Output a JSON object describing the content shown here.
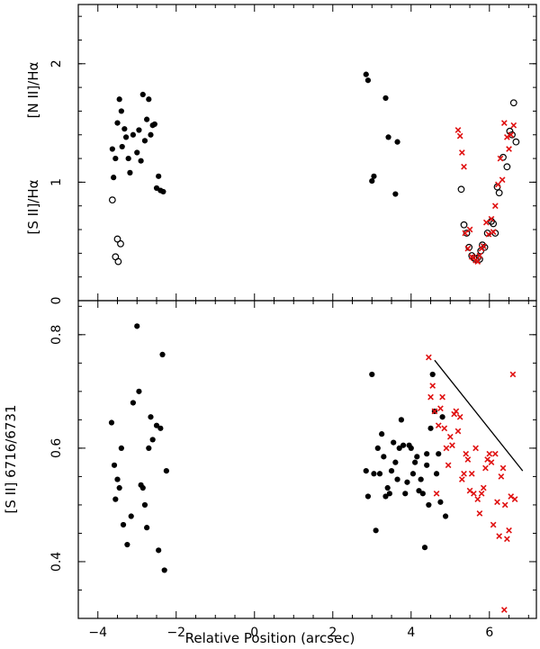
{
  "chart_data": [
    {
      "type": "scatter",
      "panel": "top",
      "ylabel_upper": "[N II]/Hα",
      "ylabel_lower": "[S II]/Hα",
      "xlim": [
        -4.5,
        7.2
      ],
      "ylim": [
        0,
        2.5
      ],
      "xticks": [
        -4,
        -2,
        0,
        2,
        4,
        6
      ],
      "yticks": [
        0,
        1,
        2
      ],
      "yticklabels": [
        "0",
        "1",
        "2"
      ],
      "series": [
        {
          "name": "[N II]/Hα",
          "marker": "filled-circle",
          "color": "#000000",
          "points": [
            [
              -3.63,
              1.28
            ],
            [
              -3.55,
              1.2
            ],
            [
              -3.5,
              1.5
            ],
            [
              -3.45,
              1.7
            ],
            [
              -3.4,
              1.6
            ],
            [
              -3.38,
              1.3
            ],
            [
              -3.32,
              1.45
            ],
            [
              -3.28,
              1.38
            ],
            [
              -3.22,
              1.2
            ],
            [
              -3.18,
              1.08
            ],
            [
              -3.1,
              1.4
            ],
            [
              -3.0,
              1.25
            ],
            [
              -2.95,
              1.44
            ],
            [
              -2.9,
              1.18
            ],
            [
              -2.85,
              1.74
            ],
            [
              -2.8,
              1.35
            ],
            [
              -2.75,
              1.53
            ],
            [
              -2.7,
              1.7
            ],
            [
              -2.65,
              1.4
            ],
            [
              -2.6,
              1.48
            ],
            [
              -2.55,
              1.49
            ],
            [
              -2.5,
              0.95
            ],
            [
              -2.45,
              1.05
            ],
            [
              -2.4,
              0.93
            ],
            [
              -2.33,
              0.92
            ],
            [
              -3.6,
              1.04
            ],
            [
              2.85,
              1.91
            ],
            [
              2.9,
              1.86
            ],
            [
              3.0,
              1.01
            ],
            [
              3.05,
              1.05
            ],
            [
              3.35,
              1.71
            ],
            [
              3.42,
              1.38
            ],
            [
              3.6,
              0.9
            ],
            [
              3.65,
              1.34
            ]
          ]
        },
        {
          "name": "[S II]/Hα",
          "marker": "open-circle",
          "color": "#000000",
          "points": [
            [
              -3.63,
              0.85
            ],
            [
              -3.55,
              0.37
            ],
            [
              -3.5,
              0.52
            ],
            [
              -3.48,
              0.33
            ],
            [
              -3.42,
              0.48
            ],
            [
              5.28,
              0.94
            ],
            [
              5.35,
              0.64
            ],
            [
              5.42,
              0.57
            ],
            [
              5.48,
              0.45
            ],
            [
              5.55,
              0.38
            ],
            [
              5.6,
              0.36
            ],
            [
              5.65,
              0.35
            ],
            [
              5.7,
              0.36
            ],
            [
              5.75,
              0.35
            ],
            [
              5.78,
              0.42
            ],
            [
              5.82,
              0.47
            ],
            [
              5.88,
              0.45
            ],
            [
              5.95,
              0.57
            ],
            [
              6.05,
              0.67
            ],
            [
              6.1,
              0.65
            ],
            [
              6.15,
              0.57
            ],
            [
              6.2,
              0.96
            ],
            [
              6.25,
              0.91
            ],
            [
              6.35,
              1.21
            ],
            [
              6.45,
              1.13
            ],
            [
              6.52,
              1.43
            ],
            [
              6.58,
              1.4
            ],
            [
              6.62,
              1.67
            ],
            [
              6.68,
              1.34
            ]
          ]
        },
        {
          "name": "[S II]/Hα (red)",
          "marker": "x",
          "color": "#e01010",
          "points": [
            [
              5.2,
              1.44
            ],
            [
              5.25,
              1.39
            ],
            [
              5.3,
              1.25
            ],
            [
              5.35,
              1.13
            ],
            [
              5.38,
              0.57
            ],
            [
              5.45,
              0.44
            ],
            [
              5.5,
              0.6
            ],
            [
              5.55,
              0.37
            ],
            [
              5.6,
              0.36
            ],
            [
              5.65,
              0.34
            ],
            [
              5.7,
              0.33
            ],
            [
              5.75,
              0.38
            ],
            [
              5.8,
              0.44
            ],
            [
              5.85,
              0.46
            ],
            [
              5.92,
              0.66
            ],
            [
              5.98,
              0.56
            ],
            [
              6.05,
              0.69
            ],
            [
              6.1,
              0.58
            ],
            [
              6.15,
              0.8
            ],
            [
              6.22,
              0.98
            ],
            [
              6.28,
              1.2
            ],
            [
              6.33,
              1.02
            ],
            [
              6.38,
              1.5
            ],
            [
              6.45,
              1.38
            ],
            [
              6.5,
              1.28
            ],
            [
              6.55,
              1.4
            ],
            [
              6.62,
              1.48
            ]
          ]
        }
      ]
    },
    {
      "type": "scatter",
      "panel": "bottom",
      "xlabel": "Relative Position (arcsec)",
      "ylabel": "[S II] 6716/6731",
      "xlim": [
        -4.5,
        7.2
      ],
      "ylim": [
        0.3,
        0.86
      ],
      "xticks": [
        -4,
        -2,
        0,
        2,
        4,
        6
      ],
      "xticklabels": [
        "−4",
        "−2",
        "0",
        "2",
        "4",
        "6"
      ],
      "yticks": [
        0.4,
        0.6,
        0.8
      ],
      "yticklabels": [
        "0.4",
        "0.6",
        "0.8"
      ],
      "series": [
        {
          "name": "black",
          "marker": "filled-circle",
          "color": "#000000",
          "points": [
            [
              -3.65,
              0.645
            ],
            [
              -3.58,
              0.57
            ],
            [
              -3.55,
              0.51
            ],
            [
              -3.5,
              0.545
            ],
            [
              -3.45,
              0.53
            ],
            [
              -3.4,
              0.6
            ],
            [
              -3.35,
              0.465
            ],
            [
              -3.25,
              0.43
            ],
            [
              -3.15,
              0.48
            ],
            [
              -3.1,
              0.68
            ],
            [
              -3.0,
              0.815
            ],
            [
              -2.95,
              0.7
            ],
            [
              -2.9,
              0.535
            ],
            [
              -2.85,
              0.53
            ],
            [
              -2.8,
              0.5
            ],
            [
              -2.7,
              0.6
            ],
            [
              -2.65,
              0.655
            ],
            [
              -2.6,
              0.615
            ],
            [
              -2.5,
              0.64
            ],
            [
              -2.45,
              0.42
            ],
            [
              -2.4,
              0.635
            ],
            [
              -2.35,
              0.765
            ],
            [
              -2.3,
              0.385
            ],
            [
              -2.25,
              0.56
            ],
            [
              -2.75,
              0.46
            ],
            [
              2.85,
              0.56
            ],
            [
              2.9,
              0.515
            ],
            [
              3.0,
              0.73
            ],
            [
              3.05,
              0.555
            ],
            [
              3.1,
              0.455
            ],
            [
              3.15,
              0.6
            ],
            [
              3.2,
              0.555
            ],
            [
              3.25,
              0.625
            ],
            [
              3.3,
              0.585
            ],
            [
              3.35,
              0.515
            ],
            [
              3.4,
              0.53
            ],
            [
              3.45,
              0.52
            ],
            [
              3.5,
              0.56
            ],
            [
              3.55,
              0.61
            ],
            [
              3.6,
              0.575
            ],
            [
              3.65,
              0.545
            ],
            [
              3.7,
              0.6
            ],
            [
              3.75,
              0.65
            ],
            [
              3.8,
              0.605
            ],
            [
              3.85,
              0.52
            ],
            [
              3.9,
              0.54
            ],
            [
              3.95,
              0.605
            ],
            [
              4.0,
              0.6
            ],
            [
              4.05,
              0.555
            ],
            [
              4.1,
              0.575
            ],
            [
              4.15,
              0.585
            ],
            [
              4.2,
              0.525
            ],
            [
              4.25,
              0.545
            ],
            [
              4.3,
              0.52
            ],
            [
              4.35,
              0.425
            ],
            [
              4.4,
              0.57
            ],
            [
              4.45,
              0.5
            ],
            [
              4.5,
              0.635
            ],
            [
              4.55,
              0.73
            ],
            [
              4.6,
              0.665
            ],
            [
              4.65,
              0.555
            ],
            [
              4.7,
              0.59
            ],
            [
              4.75,
              0.505
            ],
            [
              4.8,
              0.655
            ],
            [
              4.88,
              0.48
            ],
            [
              4.4,
              0.59
            ]
          ]
        },
        {
          "name": "red",
          "marker": "x",
          "color": "#e01010",
          "points": [
            [
              4.45,
              0.76
            ],
            [
              4.5,
              0.69
            ],
            [
              4.55,
              0.71
            ],
            [
              4.6,
              0.665
            ],
            [
              4.65,
              0.52
            ],
            [
              4.7,
              0.64
            ],
            [
              4.75,
              0.67
            ],
            [
              4.8,
              0.69
            ],
            [
              4.85,
              0.635
            ],
            [
              4.9,
              0.6
            ],
            [
              4.95,
              0.57
            ],
            [
              5.0,
              0.62
            ],
            [
              5.05,
              0.605
            ],
            [
              5.1,
              0.66
            ],
            [
              5.15,
              0.665
            ],
            [
              5.2,
              0.63
            ],
            [
              5.25,
              0.655
            ],
            [
              5.3,
              0.545
            ],
            [
              5.35,
              0.555
            ],
            [
              5.4,
              0.59
            ],
            [
              5.45,
              0.58
            ],
            [
              5.5,
              0.525
            ],
            [
              5.55,
              0.555
            ],
            [
              5.6,
              0.52
            ],
            [
              5.65,
              0.6
            ],
            [
              5.7,
              0.51
            ],
            [
              5.75,
              0.485
            ],
            [
              5.8,
              0.52
            ],
            [
              5.85,
              0.53
            ],
            [
              5.9,
              0.565
            ],
            [
              5.95,
              0.58
            ],
            [
              6.0,
              0.59
            ],
            [
              6.05,
              0.575
            ],
            [
              6.1,
              0.465
            ],
            [
              6.15,
              0.59
            ],
            [
              6.2,
              0.505
            ],
            [
              6.25,
              0.445
            ],
            [
              6.3,
              0.55
            ],
            [
              6.35,
              0.565
            ],
            [
              6.4,
              0.5
            ],
            [
              6.45,
              0.44
            ],
            [
              6.5,
              0.455
            ],
            [
              6.55,
              0.515
            ],
            [
              6.6,
              0.73
            ],
            [
              6.65,
              0.51
            ],
            [
              6.38,
              0.315
            ]
          ]
        }
      ],
      "trend_line": [
        [
          4.6,
          0.755
        ],
        [
          6.85,
          0.56
        ]
      ]
    }
  ]
}
